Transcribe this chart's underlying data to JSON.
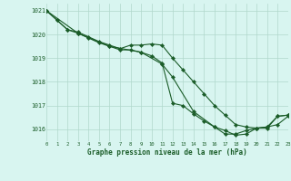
{
  "title": "Graphe pression niveau de la mer (hPa)",
  "bg_color": "#d8f5f0",
  "grid_color": "#b0d8cc",
  "line_color": "#1a5c28",
  "x_min": 0,
  "x_max": 23,
  "y_min": 1015.5,
  "y_max": 1021.3,
  "yticks": [
    1016,
    1017,
    1018,
    1019,
    1020,
    1021
  ],
  "xticks": [
    0,
    1,
    2,
    3,
    4,
    5,
    6,
    7,
    8,
    9,
    10,
    11,
    12,
    13,
    14,
    15,
    16,
    17,
    18,
    19,
    20,
    21,
    22,
    23
  ],
  "series": [
    {
      "x": [
        0,
        1,
        2,
        3,
        4,
        5,
        6,
        7,
        8,
        9,
        10,
        11,
        12,
        13,
        14,
        15,
        16,
        17,
        18,
        19,
        20,
        21,
        22,
        23
      ],
      "y": [
        1021.0,
        1020.6,
        1020.2,
        1020.1,
        1019.9,
        1019.7,
        1019.55,
        1019.4,
        1019.55,
        1019.55,
        1019.6,
        1019.55,
        1019.0,
        1018.5,
        1018.0,
        1017.5,
        1017.0,
        1016.6,
        1016.2,
        1016.1,
        1016.05,
        1016.05,
        1016.55,
        1016.6
      ]
    },
    {
      "x": [
        0,
        1,
        2,
        3,
        4,
        5,
        6,
        7,
        8,
        9,
        10,
        11,
        12,
        13,
        14,
        15,
        16,
        17,
        18,
        19,
        20,
        21,
        22,
        23
      ],
      "y": [
        1021.0,
        1020.6,
        1020.2,
        1020.05,
        1019.85,
        1019.65,
        1019.5,
        1019.35,
        1019.35,
        1019.25,
        1019.1,
        1018.8,
        1017.1,
        1017.0,
        1016.65,
        1016.35,
        1016.1,
        1015.8,
        1015.8,
        1015.95,
        1016.05,
        1016.1,
        1016.2,
        1016.55
      ]
    },
    {
      "x": [
        0,
        3,
        6,
        9,
        11,
        12,
        14,
        16,
        17,
        18,
        19,
        20,
        21,
        22,
        23
      ],
      "y": [
        1021.0,
        1020.05,
        1019.5,
        1019.25,
        1018.75,
        1018.2,
        1016.75,
        1016.1,
        1015.95,
        1015.75,
        1015.8,
        1016.05,
        1016.1,
        1016.55,
        1016.6
      ]
    }
  ]
}
